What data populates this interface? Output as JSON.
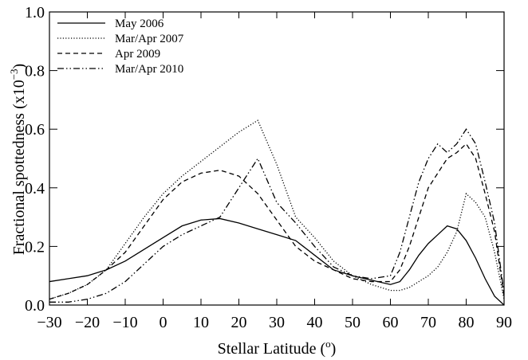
{
  "chart_data": {
    "type": "line",
    "x_label": "Stellar Latitude (",
    "x_label_sup": "o",
    "x_label_end": ")",
    "y_label": "Fractional spottedness (x10",
    "y_label_sup": "−3",
    "y_label_end": ")",
    "x": [
      -30,
      -25,
      -20,
      -15,
      -10,
      -5,
      0,
      5,
      10,
      15,
      20,
      25,
      30,
      35,
      40,
      45,
      50,
      55,
      60,
      62.5,
      65,
      67.5,
      70,
      72.5,
      75,
      77.5,
      80,
      82.5,
      85,
      87.5,
      90
    ],
    "series": [
      {
        "name": "May 2006",
        "color": "#000000",
        "style": "solid",
        "values": [
          0.08,
          0.09,
          0.1,
          0.12,
          0.15,
          0.19,
          0.23,
          0.27,
          0.29,
          0.295,
          0.28,
          0.26,
          0.24,
          0.22,
          0.17,
          0.12,
          0.1,
          0.085,
          0.07,
          0.08,
          0.12,
          0.17,
          0.21,
          0.24,
          0.27,
          0.26,
          0.22,
          0.16,
          0.09,
          0.03,
          0.0
        ]
      },
      {
        "name": "Mar/Apr 2007",
        "color": "#000000",
        "style": "dotted",
        "values": [
          0.02,
          0.04,
          0.07,
          0.12,
          0.21,
          0.3,
          0.38,
          0.44,
          0.49,
          0.54,
          0.59,
          0.63,
          0.48,
          0.3,
          0.23,
          0.15,
          0.1,
          0.07,
          0.05,
          0.05,
          0.06,
          0.08,
          0.1,
          0.13,
          0.18,
          0.25,
          0.38,
          0.35,
          0.3,
          0.18,
          0.02
        ]
      },
      {
        "name": "Apr 2009",
        "color": "#000000",
        "style": "dashed",
        "values": [
          0.02,
          0.04,
          0.07,
          0.12,
          0.18,
          0.27,
          0.36,
          0.42,
          0.45,
          0.46,
          0.44,
          0.38,
          0.29,
          0.2,
          0.15,
          0.12,
          0.09,
          0.08,
          0.08,
          0.12,
          0.2,
          0.3,
          0.4,
          0.45,
          0.5,
          0.52,
          0.55,
          0.5,
          0.38,
          0.25,
          0.03
        ]
      },
      {
        "name": "Mar/Apr 2010",
        "color": "#000000",
        "style": "dashdot",
        "values": [
          0.01,
          0.01,
          0.02,
          0.04,
          0.08,
          0.14,
          0.2,
          0.24,
          0.27,
          0.3,
          0.4,
          0.5,
          0.35,
          0.28,
          0.2,
          0.13,
          0.1,
          0.09,
          0.1,
          0.18,
          0.3,
          0.42,
          0.5,
          0.55,
          0.52,
          0.55,
          0.6,
          0.55,
          0.42,
          0.28,
          0.04
        ]
      }
    ],
    "xlim": [
      -30,
      90
    ],
    "xticks": [
      {
        "value": -30,
        "label": "−30"
      },
      {
        "value": -20,
        "label": "−20"
      },
      {
        "value": -10,
        "label": "−10"
      },
      0,
      10,
      20,
      30,
      40,
      50,
      60,
      70,
      80,
      90
    ],
    "ylim": [
      0,
      1
    ],
    "yticks": [
      {
        "value": 0,
        "label": "0.0"
      },
      0.2,
      0.4,
      0.6,
      0.8,
      {
        "value": 1,
        "label": "1.0"
      }
    ],
    "legend": "upper-left"
  }
}
